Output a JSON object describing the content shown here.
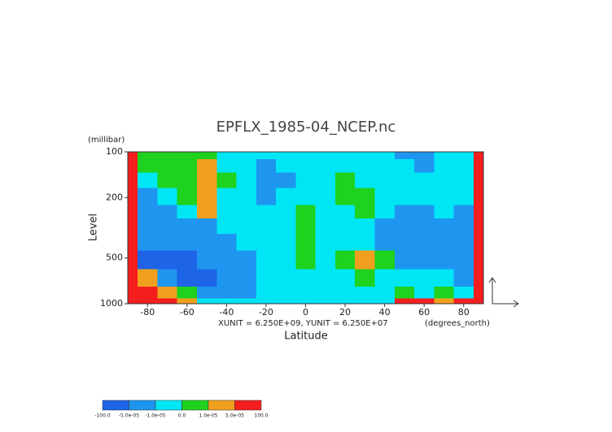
{
  "chart_data": {
    "type": "contour",
    "title": "EPFLX_1985-04_NCEP.nc",
    "ylabel": "Level",
    "yunit": "(millibar)",
    "xlabel": "Latitude",
    "xunit": "(degrees_north)",
    "annotation": "XUNIT = 6.250E+09, YUNIT = 6.250E+07",
    "x": [
      -90,
      -80,
      -70,
      -60,
      -50,
      -40,
      -30,
      -20,
      -10,
      0,
      10,
      20,
      30,
      40,
      50,
      60,
      70,
      80,
      90
    ],
    "y": [
      100,
      125,
      150,
      200,
      250,
      300,
      400,
      500,
      700,
      850,
      1000
    ],
    "z": [
      [
        0.0001,
        5e-06,
        5e-06,
        5e-06,
        5e-06,
        -5e-06,
        -5e-06,
        -5e-06,
        -5e-06,
        -5e-06,
        -5e-06,
        -5e-06,
        -5e-06,
        -5e-06,
        -3e-05,
        -3e-05,
        -5e-06,
        -5e-06,
        0.0001
      ],
      [
        0.0001,
        5e-06,
        5e-06,
        5e-06,
        3e-05,
        -5e-06,
        -5e-06,
        -3e-05,
        -5e-06,
        -5e-06,
        -5e-06,
        -5e-06,
        -5e-06,
        -5e-06,
        -5e-06,
        -3e-05,
        -5e-06,
        -5e-06,
        0.0001
      ],
      [
        0.0001,
        -5e-06,
        5e-06,
        5e-06,
        3e-05,
        5e-06,
        -5e-06,
        -3e-05,
        -3e-05,
        -5e-06,
        -5e-06,
        5e-06,
        -5e-06,
        -5e-06,
        -5e-06,
        -5e-06,
        -5e-06,
        -5e-06,
        0.0001
      ],
      [
        0.0001,
        -3e-05,
        -5e-06,
        5e-06,
        3e-05,
        -5e-06,
        -5e-06,
        -3e-05,
        -5e-06,
        -5e-06,
        -5e-06,
        5e-06,
        5e-06,
        -5e-06,
        -5e-06,
        -5e-06,
        -5e-06,
        -5e-06,
        0.0001
      ],
      [
        0.0001,
        -3e-05,
        -3e-05,
        -5e-06,
        3e-05,
        -5e-06,
        -5e-06,
        -5e-06,
        -5e-06,
        5e-06,
        -5e-06,
        -5e-06,
        5e-06,
        -5e-06,
        -3e-05,
        -3e-05,
        -5e-06,
        -3e-05,
        0.0001
      ],
      [
        0.0001,
        -3e-05,
        -3e-05,
        -3e-05,
        -3e-05,
        -5e-06,
        -5e-06,
        -5e-06,
        -5e-06,
        5e-06,
        -5e-06,
        -5e-06,
        -5e-06,
        -3e-05,
        -3e-05,
        -3e-05,
        -3e-05,
        -3e-05,
        0.0001
      ],
      [
        0.0001,
        -3e-05,
        -3e-05,
        -3e-05,
        -3e-05,
        -3e-05,
        -5e-06,
        -5e-06,
        -5e-06,
        5e-06,
        -5e-06,
        -5e-06,
        -5e-06,
        -3e-05,
        -3e-05,
        -3e-05,
        -3e-05,
        -3e-05,
        0.0001
      ],
      [
        0.0001,
        -0.0001,
        -0.0001,
        -0.0001,
        -3e-05,
        -3e-05,
        -3e-05,
        -5e-06,
        -5e-06,
        5e-06,
        -5e-06,
        5e-06,
        3e-05,
        5e-06,
        -3e-05,
        -3e-05,
        -3e-05,
        -3e-05,
        0.0001
      ],
      [
        0.0001,
        3e-05,
        -3e-05,
        -0.0001,
        -0.0001,
        -3e-05,
        -3e-05,
        -5e-06,
        -5e-06,
        -5e-06,
        -5e-06,
        -5e-06,
        5e-06,
        -5e-06,
        -5e-06,
        -5e-06,
        -5e-06,
        -3e-05,
        0.0001
      ],
      [
        0.0001,
        0.0001,
        3e-05,
        5e-06,
        -3e-05,
        -3e-05,
        -3e-05,
        -5e-06,
        -5e-06,
        -5e-06,
        -5e-06,
        -5e-06,
        -5e-06,
        -5e-06,
        5e-06,
        -5e-06,
        5e-06,
        -5e-06,
        0.0001
      ],
      [
        0.0001,
        0.0001,
        0.0001,
        3e-05,
        -5e-06,
        -5e-06,
        -5e-06,
        -5e-06,
        -5e-06,
        -5e-06,
        -5e-06,
        -5e-06,
        -5e-06,
        -5e-06,
        0.0001,
        0.0001,
        3e-05,
        0.0001,
        0.0001
      ]
    ],
    "xlim": [
      -90,
      90
    ],
    "ylim": [
      1000,
      100
    ],
    "ylog": true,
    "xticks": [
      -80,
      -60,
      -40,
      -20,
      0,
      20,
      40,
      60,
      80
    ],
    "yticks": [
      100,
      200,
      500,
      1000
    ],
    "colorbar": {
      "levels": [
        {
          "value": -100,
          "label": "-100.0"
        },
        {
          "value": -5e-05,
          "label": "-5.0e-05"
        },
        {
          "value": -1e-05,
          "label": "-1.0e-05"
        },
        {
          "value": 0,
          "label": "0.0"
        },
        {
          "value": 1e-05,
          "label": "1.0e-05"
        },
        {
          "value": 5e-05,
          "label": "5.0e-05"
        },
        {
          "value": 100,
          "label": "100.0"
        }
      ],
      "colors": [
        "#1e64e6",
        "#1e96f0",
        "#00e6f5",
        "#1ed21e",
        "#f0a01e",
        "#f51e1e"
      ]
    }
  }
}
